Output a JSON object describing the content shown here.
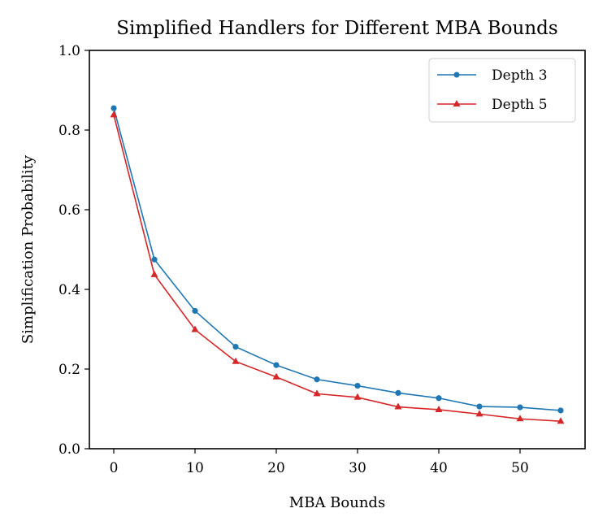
{
  "chart_data": {
    "type": "line",
    "title": "Simplified Handlers for Different MBA Bounds",
    "xlabel": "MBA Bounds",
    "ylabel": "Simplification Probability",
    "x": [
      0,
      5,
      10,
      15,
      20,
      25,
      30,
      35,
      40,
      45,
      50,
      55
    ],
    "xlim": [
      -3,
      58
    ],
    "ylim": [
      0.0,
      1.0
    ],
    "xticks": [
      0,
      10,
      20,
      30,
      40,
      50
    ],
    "yticks": [
      0.0,
      0.2,
      0.4,
      0.6,
      0.8,
      1.0
    ],
    "xtick_labels": [
      "0",
      "10",
      "20",
      "30",
      "40",
      "50"
    ],
    "ytick_labels": [
      "0.0",
      "0.2",
      "0.4",
      "0.6",
      "0.8",
      "1.0"
    ],
    "grid": false,
    "legend_position": "top-right",
    "series": [
      {
        "name": "Depth 3",
        "marker": "circle",
        "color": "#1f77b4",
        "values": [
          0.855,
          0.475,
          0.346,
          0.256,
          0.21,
          0.174,
          0.158,
          0.14,
          0.127,
          0.106,
          0.104,
          0.096
        ]
      },
      {
        "name": "Depth 5",
        "marker": "triangle",
        "color": "#d62728",
        "values": [
          0.838,
          0.437,
          0.299,
          0.219,
          0.18,
          0.138,
          0.129,
          0.105,
          0.098,
          0.087,
          0.075,
          0.069
        ]
      }
    ]
  }
}
